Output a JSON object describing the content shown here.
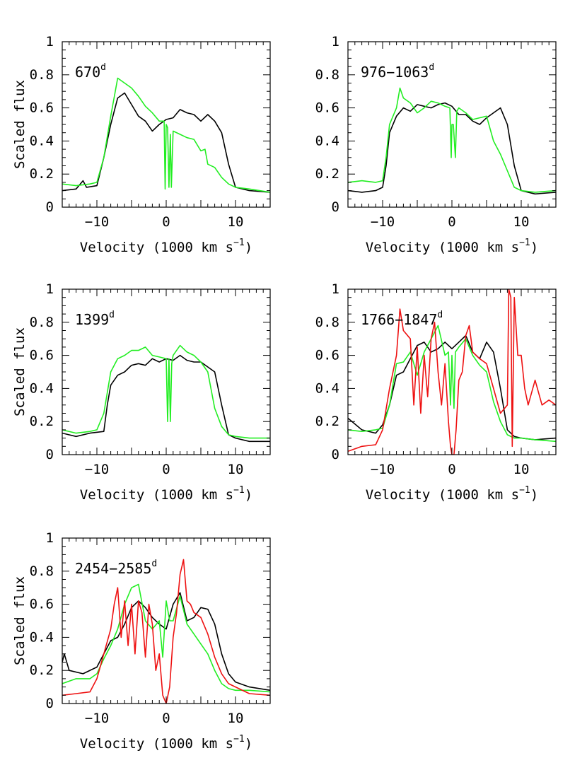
{
  "colors": {
    "black": "#000000",
    "green": "#22ee22",
    "red": "#ee1111"
  },
  "axes": {
    "xlabel": "Velocity (1000 km s",
    "xlabel_sup": "−1",
    "xlabel_close": ")",
    "ylabel": "Scaled flux",
    "xticks": [
      "−10",
      "0",
      "10"
    ],
    "yticks": [
      "0",
      "0.2",
      "0.4",
      "0.6",
      "0.8",
      "1"
    ]
  },
  "chart_data": [
    {
      "type": "line",
      "epoch": "670",
      "epoch_sup": "d",
      "xlim": [
        -15,
        15
      ],
      "ylim": [
        0,
        1
      ],
      "series": [
        {
          "color": "black",
          "x": [
            -15,
            -13,
            -12,
            -11.5,
            -10,
            -9,
            -8,
            -7,
            -6,
            -5,
            -4,
            -3,
            -2,
            -1,
            0,
            1,
            2,
            3,
            4,
            5,
            6,
            7,
            8,
            9,
            10,
            12,
            15
          ],
          "y": [
            0.1,
            0.11,
            0.16,
            0.12,
            0.13,
            0.3,
            0.5,
            0.66,
            0.69,
            0.62,
            0.55,
            0.52,
            0.46,
            0.5,
            0.53,
            0.54,
            0.59,
            0.57,
            0.56,
            0.52,
            0.56,
            0.52,
            0.45,
            0.26,
            0.12,
            0.1,
            0.09
          ]
        },
        {
          "color": "green",
          "x": [
            -15,
            -13,
            -11,
            -10,
            -9,
            -8,
            -7,
            -6,
            -5,
            -4,
            -3,
            -2,
            -1,
            -0.3,
            -0.15,
            0,
            0.2,
            0.4,
            0.6,
            0.75,
            1,
            2,
            3,
            4,
            5,
            5.6,
            6,
            7,
            8,
            9,
            10,
            12,
            15
          ],
          "y": [
            0.14,
            0.13,
            0.14,
            0.15,
            0.3,
            0.55,
            0.78,
            0.75,
            0.72,
            0.67,
            0.61,
            0.57,
            0.52,
            0.52,
            0.11,
            0.5,
            0.48,
            0.12,
            0.44,
            0.12,
            0.46,
            0.44,
            0.42,
            0.41,
            0.34,
            0.35,
            0.26,
            0.24,
            0.18,
            0.14,
            0.12,
            0.11,
            0.09
          ]
        }
      ]
    },
    {
      "type": "line",
      "epoch": "976−1063",
      "epoch_sup": "d",
      "xlim": [
        -15,
        15
      ],
      "ylim": [
        0,
        1
      ],
      "series": [
        {
          "color": "black",
          "x": [
            -15,
            -13,
            -11,
            -10,
            -9.5,
            -9,
            -8,
            -7,
            -6,
            -5,
            -4,
            -3,
            -2,
            -1,
            0,
            1,
            2,
            3,
            4,
            5,
            6,
            7,
            8,
            9,
            10,
            12,
            15
          ],
          "y": [
            0.1,
            0.09,
            0.1,
            0.12,
            0.25,
            0.45,
            0.55,
            0.6,
            0.58,
            0.62,
            0.61,
            0.6,
            0.62,
            0.63,
            0.61,
            0.56,
            0.56,
            0.52,
            0.5,
            0.54,
            0.57,
            0.6,
            0.5,
            0.25,
            0.1,
            0.08,
            0.09
          ]
        },
        {
          "color": "green",
          "x": [
            -15,
            -13,
            -11,
            -10,
            -9.5,
            -9,
            -8,
            -7.5,
            -7,
            -6,
            -5,
            -4,
            -3,
            -2,
            -1,
            -0.3,
            -0.1,
            0,
            0.2,
            0.5,
            0.7,
            1,
            2,
            3,
            4,
            5,
            6,
            6.5,
            7,
            8,
            9,
            10,
            12,
            15
          ],
          "y": [
            0.15,
            0.16,
            0.15,
            0.16,
            0.3,
            0.5,
            0.6,
            0.72,
            0.66,
            0.63,
            0.57,
            0.6,
            0.64,
            0.63,
            0.61,
            0.6,
            0.3,
            0.5,
            0.5,
            0.3,
            0.58,
            0.6,
            0.57,
            0.53,
            0.54,
            0.55,
            0.4,
            0.36,
            0.32,
            0.22,
            0.12,
            0.1,
            0.09,
            0.1
          ]
        }
      ]
    },
    {
      "type": "line",
      "epoch": "1399",
      "epoch_sup": "d",
      "xlim": [
        -15,
        15
      ],
      "ylim": [
        0,
        1
      ],
      "series": [
        {
          "color": "black",
          "x": [
            -15,
            -13,
            -11,
            -9,
            -8.5,
            -8,
            -7,
            -6,
            -5,
            -4,
            -3,
            -2,
            -1,
            0,
            1,
            2,
            3,
            4,
            5,
            6,
            7,
            8,
            9,
            10,
            12,
            15
          ],
          "y": [
            0.13,
            0.11,
            0.13,
            0.14,
            0.3,
            0.42,
            0.48,
            0.5,
            0.54,
            0.55,
            0.54,
            0.58,
            0.56,
            0.58,
            0.57,
            0.6,
            0.57,
            0.56,
            0.56,
            0.53,
            0.5,
            0.3,
            0.12,
            0.1,
            0.08,
            0.08
          ]
        },
        {
          "color": "green",
          "x": [
            -15,
            -13,
            -11,
            -10,
            -9,
            -8,
            -7,
            -6,
            -5,
            -4,
            -3,
            -2,
            -1,
            0,
            0.2,
            0.4,
            0.6,
            0.8,
            1,
            2,
            3,
            4,
            5,
            6,
            7,
            8,
            9,
            10,
            12,
            15
          ],
          "y": [
            0.15,
            0.13,
            0.14,
            0.15,
            0.25,
            0.5,
            0.58,
            0.6,
            0.63,
            0.63,
            0.65,
            0.6,
            0.59,
            0.58,
            0.2,
            0.58,
            0.2,
            0.55,
            0.6,
            0.66,
            0.62,
            0.6,
            0.56,
            0.5,
            0.28,
            0.17,
            0.12,
            0.11,
            0.1,
            0.1
          ]
        }
      ]
    },
    {
      "type": "line",
      "epoch": "1766−1847",
      "epoch_sup": "d",
      "xlim": [
        -15,
        15
      ],
      "ylim": [
        0,
        1
      ],
      "series": [
        {
          "color": "black",
          "x": [
            -15,
            -13,
            -11,
            -10,
            -9,
            -8,
            -7,
            -6,
            -5,
            -4,
            -3,
            -2,
            -1,
            0,
            1,
            2,
            3,
            4,
            5,
            6,
            7,
            8,
            9,
            10,
            12,
            15
          ],
          "y": [
            0.22,
            0.15,
            0.13,
            0.18,
            0.3,
            0.48,
            0.5,
            0.58,
            0.66,
            0.68,
            0.62,
            0.64,
            0.68,
            0.64,
            0.68,
            0.72,
            0.62,
            0.58,
            0.68,
            0.62,
            0.4,
            0.15,
            0.11,
            0.1,
            0.09,
            0.1
          ]
        },
        {
          "color": "green",
          "x": [
            -15,
            -13,
            -11,
            -10,
            -9,
            -8,
            -7,
            -6,
            -5,
            -4,
            -3,
            -2,
            -1,
            -0.5,
            -0.2,
            0,
            0.3,
            0.5,
            1,
            2,
            3,
            4,
            5,
            6,
            7,
            8,
            9,
            10,
            12,
            15
          ],
          "y": [
            0.15,
            0.14,
            0.15,
            0.16,
            0.3,
            0.55,
            0.56,
            0.62,
            0.48,
            0.62,
            0.7,
            0.78,
            0.6,
            0.62,
            0.3,
            0.6,
            0.28,
            0.62,
            0.65,
            0.7,
            0.6,
            0.54,
            0.5,
            0.32,
            0.2,
            0.12,
            0.1,
            0.1,
            0.09,
            0.08
          ]
        },
        {
          "color": "red",
          "x": [
            -15,
            -13,
            -11,
            -10,
            -9,
            -8,
            -7.5,
            -7,
            -6,
            -5.5,
            -5,
            -4.5,
            -4,
            -3.5,
            -3,
            -2.5,
            -2,
            -1.5,
            -1,
            -0.5,
            -0.2,
            0,
            0.3,
            0.6,
            1,
            1.5,
            2,
            2.5,
            3,
            4,
            5,
            6,
            7,
            8,
            8.2,
            8.5,
            8.7,
            9,
            9.5,
            10,
            10.5,
            11,
            12,
            13,
            14,
            15
          ],
          "y": [
            0.02,
            0.05,
            0.06,
            0.15,
            0.4,
            0.6,
            0.88,
            0.75,
            0.7,
            0.3,
            0.65,
            0.25,
            0.6,
            0.35,
            0.7,
            0.8,
            0.5,
            0.3,
            0.55,
            0.2,
            0.05,
            0.0,
            0.0,
            0.15,
            0.45,
            0.5,
            0.72,
            0.78,
            0.62,
            0.58,
            0.55,
            0.4,
            0.25,
            0.3,
            1.0,
            0.95,
            0.05,
            0.95,
            0.6,
            0.6,
            0.4,
            0.3,
            0.45,
            0.3,
            0.33,
            0.3
          ]
        }
      ]
    },
    {
      "type": "line",
      "epoch": "2454−2585",
      "epoch_sup": "d",
      "xlim": [
        -15,
        15
      ],
      "ylim": [
        0,
        1
      ],
      "series": [
        {
          "color": "black",
          "x": [
            -15,
            -14.7,
            -14,
            -12,
            -10,
            -9,
            -8,
            -7,
            -6,
            -5,
            -4,
            -3,
            -2,
            -1,
            0,
            1,
            2,
            3,
            4,
            5,
            6,
            7,
            8,
            9,
            10,
            12,
            15
          ],
          "y": [
            0.25,
            0.3,
            0.2,
            0.18,
            0.22,
            0.3,
            0.38,
            0.4,
            0.48,
            0.58,
            0.62,
            0.58,
            0.52,
            0.48,
            0.45,
            0.6,
            0.67,
            0.5,
            0.52,
            0.58,
            0.57,
            0.48,
            0.3,
            0.18,
            0.13,
            0.1,
            0.08
          ]
        },
        {
          "color": "green",
          "x": [
            -15,
            -13,
            -11,
            -10,
            -9,
            -8,
            -7,
            -6,
            -5,
            -4,
            -3,
            -2,
            -1,
            -0.5,
            0,
            0.5,
            1,
            2,
            3,
            4,
            5,
            6,
            7,
            8,
            9,
            10,
            12,
            15
          ],
          "y": [
            0.12,
            0.15,
            0.15,
            0.18,
            0.27,
            0.35,
            0.45,
            0.6,
            0.7,
            0.72,
            0.5,
            0.45,
            0.5,
            0.28,
            0.62,
            0.5,
            0.5,
            0.65,
            0.48,
            0.42,
            0.36,
            0.3,
            0.2,
            0.12,
            0.09,
            0.08,
            0.08,
            0.07
          ]
        },
        {
          "color": "red",
          "x": [
            -15,
            -13,
            -11,
            -10,
            -9,
            -8,
            -7.5,
            -7,
            -6.5,
            -6,
            -5.5,
            -5,
            -4.5,
            -4,
            -3.5,
            -3,
            -2.5,
            -2,
            -1.5,
            -1,
            -0.5,
            0,
            0.5,
            1,
            1.5,
            2,
            2.5,
            3,
            3.5,
            4,
            5,
            6,
            7,
            8,
            9,
            10,
            12,
            15
          ],
          "y": [
            0.05,
            0.06,
            0.07,
            0.15,
            0.3,
            0.45,
            0.6,
            0.7,
            0.4,
            0.62,
            0.35,
            0.6,
            0.3,
            0.62,
            0.55,
            0.28,
            0.6,
            0.48,
            0.2,
            0.3,
            0.05,
            0.0,
            0.1,
            0.4,
            0.55,
            0.78,
            0.87,
            0.62,
            0.6,
            0.55,
            0.52,
            0.42,
            0.28,
            0.18,
            0.12,
            0.1,
            0.06,
            0.05
          ]
        }
      ]
    }
  ]
}
